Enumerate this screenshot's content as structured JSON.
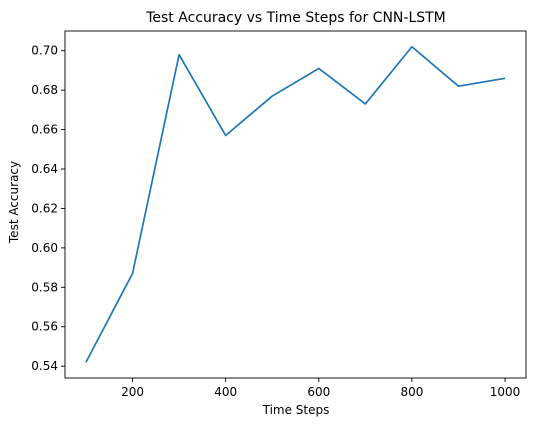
{
  "chart_data": {
    "type": "line",
    "title": "Test Accuracy vs Time Steps for CNN-LSTM",
    "xlabel": "Time Steps",
    "ylabel": "Test Accuracy",
    "x": [
      100,
      200,
      300,
      400,
      500,
      600,
      700,
      800,
      900,
      1000
    ],
    "series": [
      {
        "values": [
          0.542,
          0.587,
          0.698,
          0.657,
          0.677,
          0.691,
          0.673,
          0.702,
          0.682,
          0.686
        ],
        "color": "#1f77b4"
      }
    ],
    "xlim": [
      55,
      1045
    ],
    "ylim": [
      0.534,
      0.71
    ],
    "xticks": [
      200,
      400,
      600,
      800,
      1000
    ],
    "xtick_labels": [
      "200",
      "400",
      "600",
      "800",
      "1000"
    ],
    "yticks": [
      0.54,
      0.56,
      0.58,
      0.6,
      0.62,
      0.64,
      0.66,
      0.68,
      0.7
    ],
    "ytick_labels": [
      "0.54",
      "0.56",
      "0.58",
      "0.60",
      "0.62",
      "0.64",
      "0.66",
      "0.68",
      "0.70"
    ],
    "grid": false,
    "legend": "none"
  }
}
